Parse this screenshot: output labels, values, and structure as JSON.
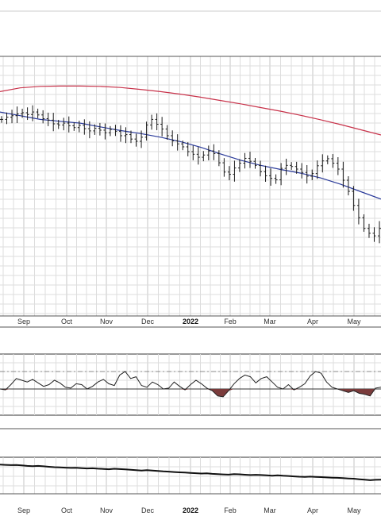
{
  "chart_data": {
    "type": "line",
    "colors": {
      "price_bar": "#1a1a1a",
      "sma_short": "#2a3a9a",
      "sma_long": "#c8324a",
      "oscillator": "#222222",
      "oscillator_fill": "#7a3b3b",
      "lower_line": "#111111",
      "grid": "#dddddd",
      "frame": "#555555"
    },
    "x_axis_labels": [
      "Sep",
      "Oct",
      "Nov",
      "Dec",
      "2022",
      "Feb",
      "Mar",
      "Apr",
      "May"
    ],
    "price_panel": {
      "ohlc_close": [
        148,
        148.6,
        149,
        149.5,
        149.8,
        149.3,
        150,
        149.2,
        148.2,
        147.8,
        146.8,
        146.5,
        147,
        146.3,
        145.8,
        146.4,
        145.5,
        144.9,
        145.6,
        145.1,
        144.4,
        145.3,
        144.8,
        143.6,
        143.9,
        142.7,
        142.1,
        143.2,
        146.5,
        148,
        146.7,
        145.4,
        143.6,
        142.2,
        141.4,
        140.6,
        139.3,
        138.6,
        137.8,
        138.4,
        139.5,
        138.8,
        136.3,
        133.8,
        133.2,
        134.9,
        136.2,
        137.5,
        136.7,
        135.6,
        133.9,
        132.8,
        132.1,
        131.7,
        134.8,
        135.6,
        135.3,
        134.6,
        133.7,
        132.7,
        133.4,
        135.5,
        136.8,
        137.4,
        136.2,
        134.6,
        131.6,
        128.6,
        124.8,
        121.5,
        118.6,
        117.3,
        116.6,
        118.6
      ],
      "sma_short": [
        150,
        149,
        148,
        147.5,
        147,
        146,
        145,
        144.2,
        143.2,
        142,
        140.5,
        138.7,
        137,
        135.6,
        134.5,
        133.5,
        132.2,
        130.5,
        128.5,
        126.5
      ],
      "sma_long": [
        155.5,
        156.5,
        156.9,
        157,
        157,
        156.9,
        156.6,
        156.1,
        155.5,
        154.8,
        154,
        153.1,
        152.2,
        151.2,
        150.2,
        149.1,
        147.9,
        146.6,
        145.2,
        143.8
      ]
    },
    "oscillator_panel": {
      "values": [
        50,
        49,
        55,
        62,
        60,
        58,
        61,
        57,
        53,
        55,
        60,
        57,
        52,
        51,
        56,
        55,
        50,
        53,
        58,
        61,
        56,
        54,
        66,
        70,
        62,
        64,
        54,
        52,
        58,
        55,
        50,
        51,
        58,
        53,
        49,
        55,
        60,
        56,
        51,
        48,
        42,
        41,
        48,
        56,
        62,
        66,
        64,
        57,
        62,
        64,
        58,
        52,
        50,
        55,
        49,
        52,
        56,
        65,
        70,
        68,
        58,
        52,
        50,
        48,
        46,
        48,
        45,
        44,
        42,
        51,
        52
      ],
      "levels": [
        50,
        70
      ]
    },
    "lower_panel": {
      "values": [
        100,
        99.6,
        99.2,
        99.4,
        98.8,
        98.2,
        97.7,
        98.1,
        97.6,
        97,
        96.4,
        96.2,
        95.8,
        95.4,
        95.7,
        95.1,
        94.7,
        94.9,
        94.4,
        94,
        93.6,
        94.2,
        93.8,
        93.4,
        92.9,
        92.4,
        91.9,
        92.3,
        91.7,
        91.2,
        90.7,
        90.3,
        89.8,
        89.4,
        89,
        88.6,
        88.1,
        87.7,
        87.9,
        87.3,
        86.8,
        86.5,
        86.2,
        86.9,
        86.6,
        86.1,
        85.7,
        86,
        85.6,
        85.2,
        84.8,
        85.2,
        84.7,
        84.3,
        83.8,
        83.4,
        83.1,
        83.5,
        83.2,
        82.8,
        82.4,
        82.1,
        81.8,
        81.4,
        81,
        80.6,
        79.9,
        79.2,
        78.6,
        79.1,
        79.4
      ]
    }
  }
}
